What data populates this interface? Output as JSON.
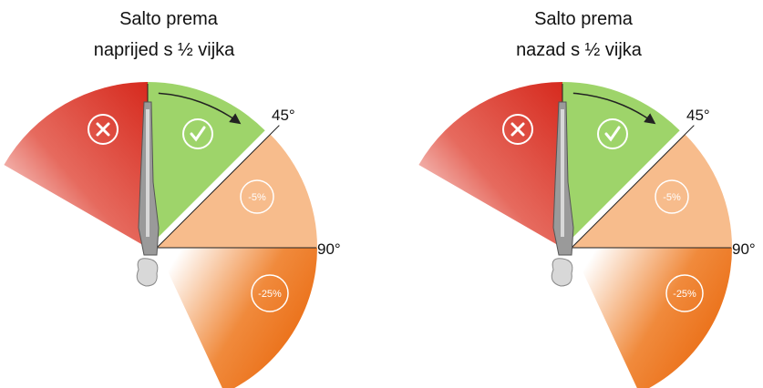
{
  "panels": [
    {
      "title": [
        "Salto prema",
        "naprijed s ½ vijka"
      ],
      "angle_45": "45°",
      "angle_90": "90°",
      "zone_minus5": "-5%",
      "zone_minus25": "-25%"
    },
    {
      "title": [
        "Salto prema",
        "nazad s ½ vijka"
      ],
      "angle_45": "45°",
      "angle_90": "90°",
      "zone_minus5": "-5%",
      "zone_minus25": "-25%"
    }
  ]
}
